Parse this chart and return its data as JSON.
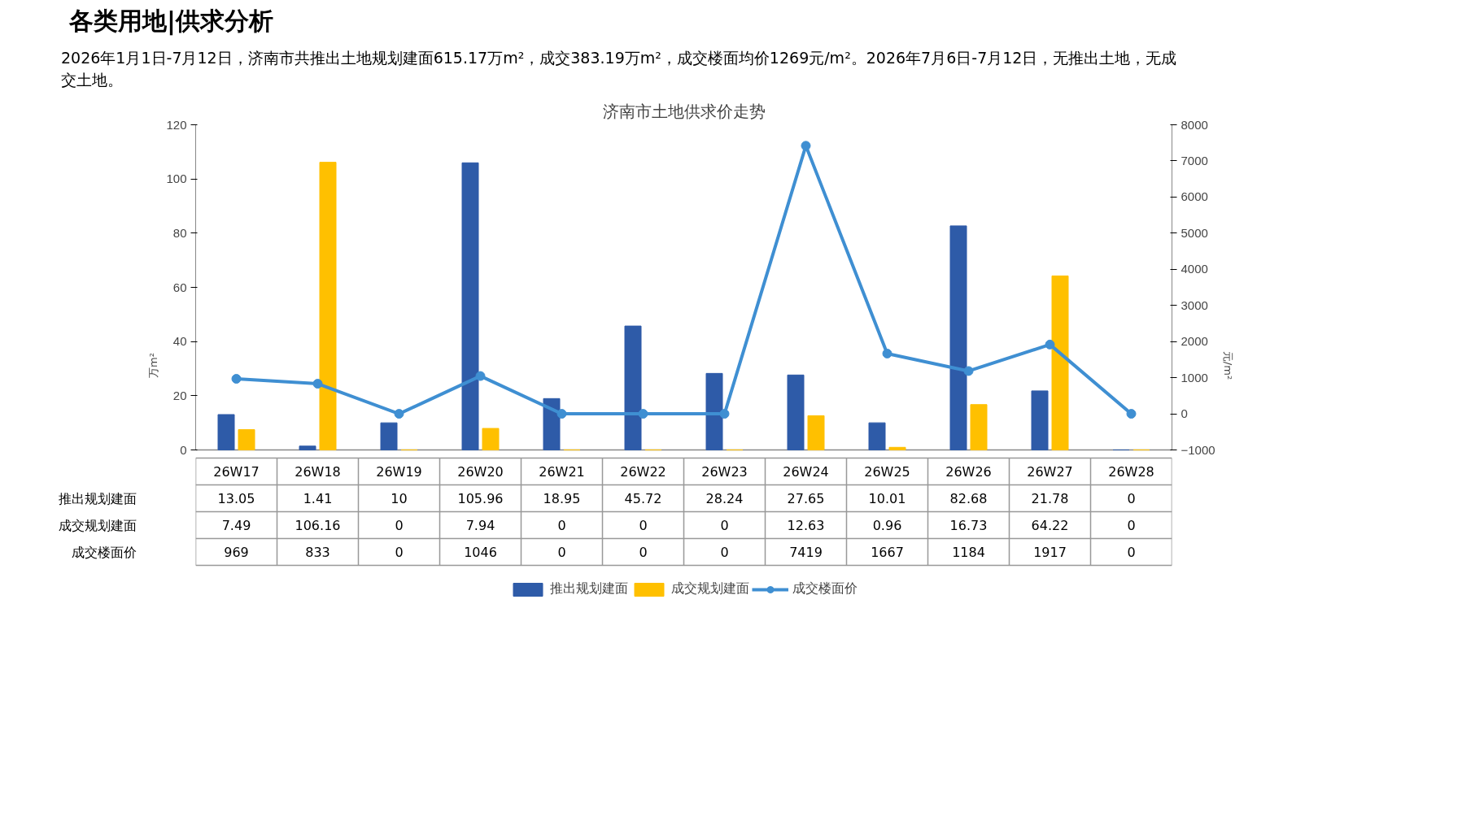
{
  "chart_data": {
    "type": "bar",
    "title": "济南市土地供求价走势",
    "annotations": [
      "各类用地|供求分析",
      "2026年1月1日-7月12日，济南市共推出土地规划建面615.17万m²，成交383.19万m²，成交楼面均价1269元/m²。2026年7月6日-7月12日，无推出土地，无成交土地。"
    ],
    "categories": [
      "26W17",
      "26W18",
      "26W19",
      "26W20",
      "26W21",
      "26W22",
      "26W23",
      "26W24",
      "26W25",
      "26W26",
      "26W27",
      "26W28"
    ],
    "series": [
      {
        "name": "推出规划建面",
        "color": "#2e5ba8",
        "values": [
          13.05,
          1.41,
          10,
          105.96,
          18.95,
          45.72,
          28.24,
          27.65,
          10.01,
          82.68,
          21.78,
          0
        ]
      },
      {
        "name": "成交规划建面",
        "color": "#ffc000",
        "values": [
          7.49,
          106.16,
          0,
          7.94,
          0,
          0,
          0,
          12.63,
          0.96,
          16.73,
          64.22,
          0
        ]
      },
      {
        "name": "成交楼面价",
        "type": "line",
        "axis": "y2",
        "color": "#3f8fd2",
        "marker": "circle",
        "line_style": "solid",
        "values": [
          969,
          833,
          0,
          1046,
          0,
          0,
          0,
          7419,
          1667,
          1184,
          1917,
          0
        ]
      }
    ],
    "ylabel": "万m²",
    "y2label": "元/m²",
    "ylim": [
      0,
      120
    ],
    "yticks": [
      0,
      20,
      40,
      60,
      80,
      100,
      120
    ],
    "y2lim": [
      -1000,
      8000
    ],
    "y2ticks": [
      -1000,
      0,
      1000,
      2000,
      3000,
      4000,
      5000,
      6000,
      7000,
      8000
    ],
    "data_labels": true,
    "legend": "bottom",
    "grid": false
  }
}
